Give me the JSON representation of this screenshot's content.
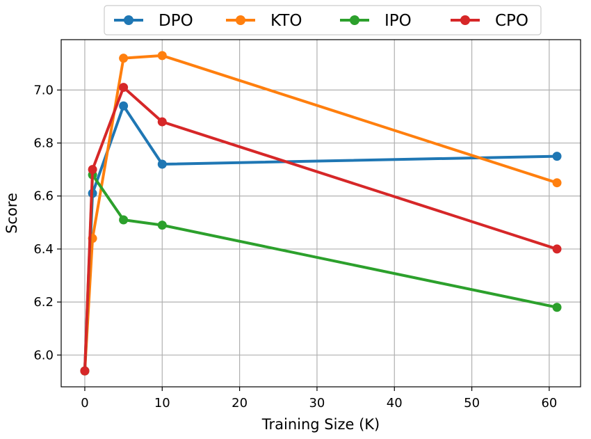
{
  "chart_data": {
    "type": "line",
    "title": "",
    "xlabel": "Training Size (K)",
    "ylabel": "Score",
    "xlim": [
      -3.05,
      64.05
    ],
    "ylim": [
      5.88,
      7.19
    ],
    "xticks": [
      0,
      10,
      20,
      30,
      40,
      50,
      60
    ],
    "yticks": [
      6.0,
      6.2,
      6.4,
      6.6,
      6.8,
      7.0
    ],
    "grid": true,
    "legend_position": "top-center",
    "x": [
      0,
      1,
      5,
      10,
      61
    ],
    "series": [
      {
        "name": "DPO",
        "color": "#1f77b4",
        "values": [
          5.94,
          6.61,
          6.94,
          6.72,
          6.75
        ]
      },
      {
        "name": "KTO",
        "color": "#ff7f0e",
        "values": [
          5.94,
          6.44,
          7.12,
          7.13,
          6.65
        ]
      },
      {
        "name": "IPO",
        "color": "#2ca02c",
        "values": [
          5.94,
          6.68,
          6.51,
          6.49,
          6.18
        ]
      },
      {
        "name": "CPO",
        "color": "#d62728",
        "values": [
          5.94,
          6.7,
          7.01,
          6.88,
          6.4
        ]
      }
    ]
  }
}
